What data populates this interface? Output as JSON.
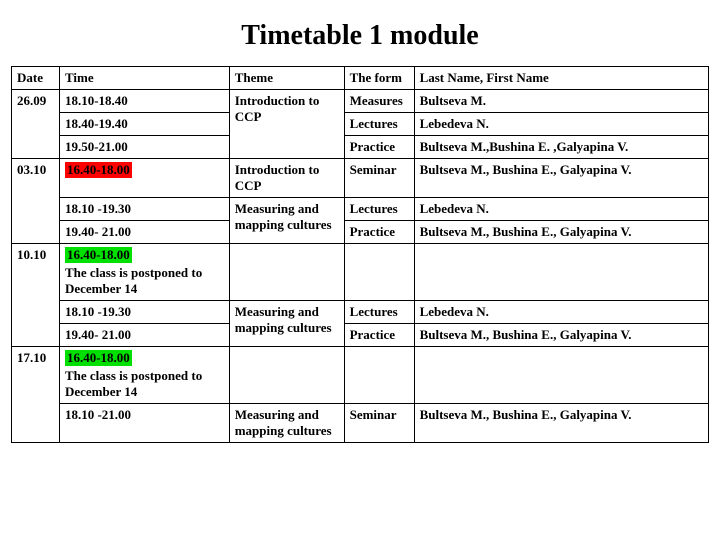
{
  "title": "Timetable 1 module",
  "colors": {
    "highlight_red": "#ff0000",
    "highlight_green": "#00e000",
    "border": "#000000",
    "background": "#ffffff"
  },
  "headers": {
    "date": "Date",
    "time": "Time",
    "theme": "Theme",
    "form": "The form",
    "name": "Last Name, First Name"
  },
  "groups": [
    {
      "date": "26.09",
      "rows": [
        {
          "time": "18.10-18.40",
          "time_hl": null,
          "time_note": null,
          "theme": "Introduction to CCP",
          "theme_rowspan": 3,
          "form": "Measures",
          "name": "Bultseva M."
        },
        {
          "time": "18.40-19.40",
          "time_hl": null,
          "time_note": null,
          "form": "Lectures",
          "name": "Lebedeva N."
        },
        {
          "time": "19.50-21.00",
          "time_hl": null,
          "time_note": null,
          "form": "Practice",
          "name": "Bultseva M.,Bushina E. ,Galyapina V."
        }
      ]
    },
    {
      "date": "03.10",
      "rows": [
        {
          "time": "16.40-18.00",
          "time_hl": "red",
          "time_note": null,
          "theme": "Introduction to CCP",
          "theme_rowspan": 1,
          "form": "Seminar",
          "name": "Bultseva M., Bushina E., Galyapina V."
        },
        {
          "time": "18.10 -19.30",
          "time_hl": null,
          "time_note": null,
          "theme": "Measuring and mapping cultures",
          "theme_rowspan": 2,
          "form": "Lectures",
          "name": "Lebedeva N."
        },
        {
          "time": "19.40- 21.00",
          "time_hl": null,
          "time_note": null,
          "form": "Practice",
          "name": "Bultseva M., Bushina E., Galyapina V."
        }
      ]
    },
    {
      "date": "10.10",
      "rows": [
        {
          "time": "16.40-18.00",
          "time_hl": "green",
          "time_note": "The class  is postponed to December 14",
          "theme": "",
          "theme_rowspan": 1,
          "form": "",
          "name": ""
        },
        {
          "time": "18.10 -19.30",
          "time_hl": null,
          "time_note": null,
          "theme": "Measuring and mapping cultures",
          "theme_rowspan": 2,
          "form": "Lectures",
          "name": "Lebedeva N."
        },
        {
          "time": "19.40- 21.00",
          "time_hl": null,
          "time_note": null,
          "form": "Practice",
          "name": "Bultseva M., Bushina E., Galyapina V."
        }
      ]
    },
    {
      "date": "17.10",
      "rows": [
        {
          "time": "16.40-18.00",
          "time_hl": "green",
          "time_note": "The class  is postponed to December 14",
          "theme": "",
          "theme_rowspan": 1,
          "form": "",
          "name": ""
        },
        {
          "time": "18.10 -21.00",
          "time_hl": null,
          "time_note": null,
          "theme": "Measuring and mapping cultures",
          "theme_rowspan": 1,
          "form": "Seminar",
          "name": "Bultseva M., Bushina E., Galyapina V."
        }
      ]
    }
  ]
}
